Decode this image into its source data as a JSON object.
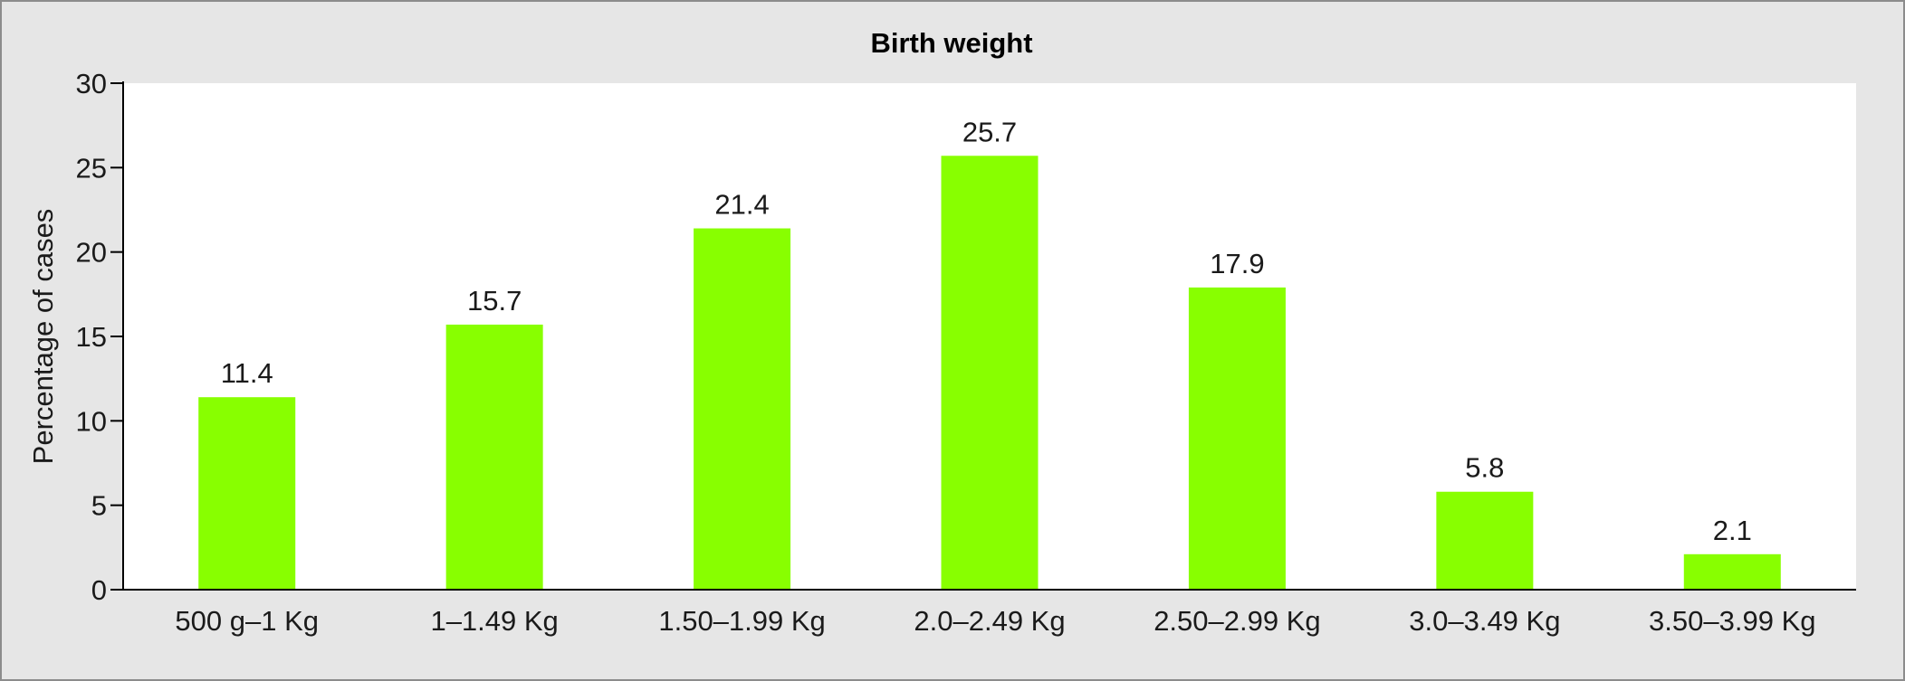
{
  "chart_data": {
    "type": "bar",
    "title": "Birth weight",
    "xlabel": "",
    "ylabel": "Percentage of cases",
    "ylim": [
      0,
      30
    ],
    "yticks": [
      "0",
      "5",
      "10",
      "15",
      "20",
      "25",
      "30"
    ],
    "categories": [
      "500 g–1 Kg",
      "1–1.49 Kg",
      "1.50–1.99 Kg",
      "2.0–2.49 Kg",
      "2.50–2.99 Kg",
      "3.0–3.49 Kg",
      "3.50–3.99 Kg"
    ],
    "values": [
      11.4,
      15.7,
      21.4,
      25.7,
      17.9,
      5.8,
      2.1
    ],
    "data_labels": [
      "11.4",
      "15.7",
      "21.4",
      "25.7",
      "17.9",
      "5.8",
      "2.1"
    ],
    "grid": false,
    "legend": "none",
    "colors": {
      "bar": "#88ff00",
      "plot_background": "#ffffff",
      "figure_background": "#e6e6e6",
      "axis": "#000000"
    }
  }
}
